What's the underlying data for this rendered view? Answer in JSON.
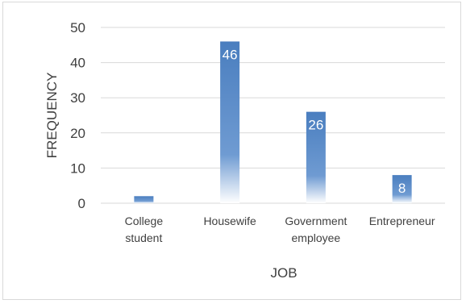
{
  "chart_data": {
    "type": "bar",
    "categories": [
      [
        "College",
        "student"
      ],
      [
        "Housewife"
      ],
      [
        "Government",
        "employee"
      ],
      [
        "Entrepreneur"
      ]
    ],
    "values": [
      2,
      46,
      26,
      8
    ],
    "data_labels": [
      "",
      "46",
      "26",
      "8"
    ],
    "xlabel": "JOB",
    "ylabel": "FREQUENCY",
    "ylim": [
      0,
      50
    ],
    "yticks": [
      0,
      10,
      20,
      30,
      40,
      50
    ],
    "grid": true,
    "legend": "none",
    "colors": {
      "bar": "#4a7ebf",
      "grid": "#d9d9d9",
      "text": "#404040"
    }
  }
}
